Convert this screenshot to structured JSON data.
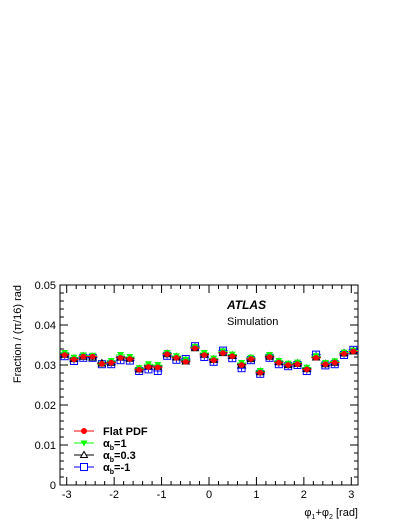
{
  "chart_data": {
    "type": "scatter",
    "xlabel_main": "φ",
    "xlabel_sub1": "1",
    "xlabel_plus": "+φ",
    "xlabel_sub2": "2",
    "xlabel_unit": " [rad]",
    "ylabel": "Fraction / (π/16) rad",
    "xlim": [
      -3.14159,
      3.14159
    ],
    "ylim": [
      0,
      0.05
    ],
    "xticks": [
      -3,
      -2,
      -1,
      0,
      1,
      2,
      3
    ],
    "xtick_labels": [
      "-3",
      "-2",
      "-1",
      "0",
      "1",
      "2",
      "3"
    ],
    "yticks": [
      0,
      0.01,
      0.02,
      0.03,
      0.04,
      0.05
    ],
    "ytick_labels": [
      "0",
      "0.01",
      "0.02",
      "0.03",
      "0.04",
      "0.05"
    ],
    "annotation_brand": "ATLAS",
    "annotation_sub": "Simulation",
    "x": [
      -3.0434,
      -2.8471,
      -2.6507,
      -2.4544,
      -2.258,
      -2.0617,
      -1.8653,
      -1.669,
      -1.4726,
      -1.2763,
      -1.0799,
      -0.8836,
      -0.6872,
      -0.4909,
      -0.2945,
      -0.0982,
      0.0982,
      0.2945,
      0.4909,
      0.6872,
      0.8836,
      1.0799,
      1.2763,
      1.4726,
      1.669,
      1.8653,
      2.0617,
      2.258,
      2.4544,
      2.6507,
      2.8471,
      3.0434
    ],
    "series": [
      {
        "name": "Flat PDF",
        "color": "#ff0000",
        "marker": "filled-circle",
        "values": [
          0.0325,
          0.0314,
          0.0321,
          0.0321,
          0.0303,
          0.0306,
          0.0318,
          0.0315,
          0.0288,
          0.0295,
          0.0294,
          0.0327,
          0.0318,
          0.0308,
          0.0342,
          0.0325,
          0.0312,
          0.033,
          0.0322,
          0.03,
          0.0315,
          0.0281,
          0.032,
          0.0306,
          0.03,
          0.0302,
          0.0289,
          0.0318,
          0.0302,
          0.0306,
          0.0328,
          0.0334
        ]
      },
      {
        "name_main": "α",
        "name_sub": "b",
        "name_tail": "=1",
        "color": "#00ff00",
        "marker": "filled-triangle-down",
        "values": [
          0.033,
          0.0318,
          0.0324,
          0.0323,
          0.0301,
          0.031,
          0.0325,
          0.032,
          0.0292,
          0.0302,
          0.03,
          0.033,
          0.0322,
          0.0313,
          0.0345,
          0.033,
          0.0316,
          0.0334,
          0.0326,
          0.0305,
          0.0318,
          0.0285,
          0.0325,
          0.031,
          0.0303,
          0.0306,
          0.0293,
          0.0322,
          0.0305,
          0.0309,
          0.0331,
          0.0336
        ]
      },
      {
        "name_main": "α",
        "name_sub": "b",
        "name_tail": "=0.3",
        "color": "#000000",
        "marker": "open-triangle-up",
        "values": [
          0.0327,
          0.0316,
          0.0322,
          0.032,
          0.0305,
          0.0307,
          0.032,
          0.0317,
          0.029,
          0.0298,
          0.0297,
          0.0328,
          0.032,
          0.031,
          0.0343,
          0.0327,
          0.0314,
          0.0331,
          0.0324,
          0.0302,
          0.0316,
          0.0283,
          0.0322,
          0.0308,
          0.0301,
          0.0304,
          0.0291,
          0.032,
          0.0303,
          0.0307,
          0.033,
          0.0335
        ]
      },
      {
        "name_main": "α",
        "name_sub": "b",
        "name_tail": "=-1",
        "color": "#0000ff",
        "marker": "open-square",
        "values": [
          0.0322,
          0.031,
          0.0318,
          0.0318,
          0.0302,
          0.0302,
          0.0312,
          0.0311,
          0.0285,
          0.0289,
          0.0285,
          0.0323,
          0.0313,
          0.0315,
          0.0347,
          0.032,
          0.0308,
          0.0336,
          0.0317,
          0.0292,
          0.0312,
          0.0278,
          0.0318,
          0.0302,
          0.0297,
          0.03,
          0.0285,
          0.0326,
          0.0299,
          0.0302,
          0.0325,
          0.0338
        ]
      }
    ],
    "legend_position": "bottom-left",
    "grid": false
  }
}
